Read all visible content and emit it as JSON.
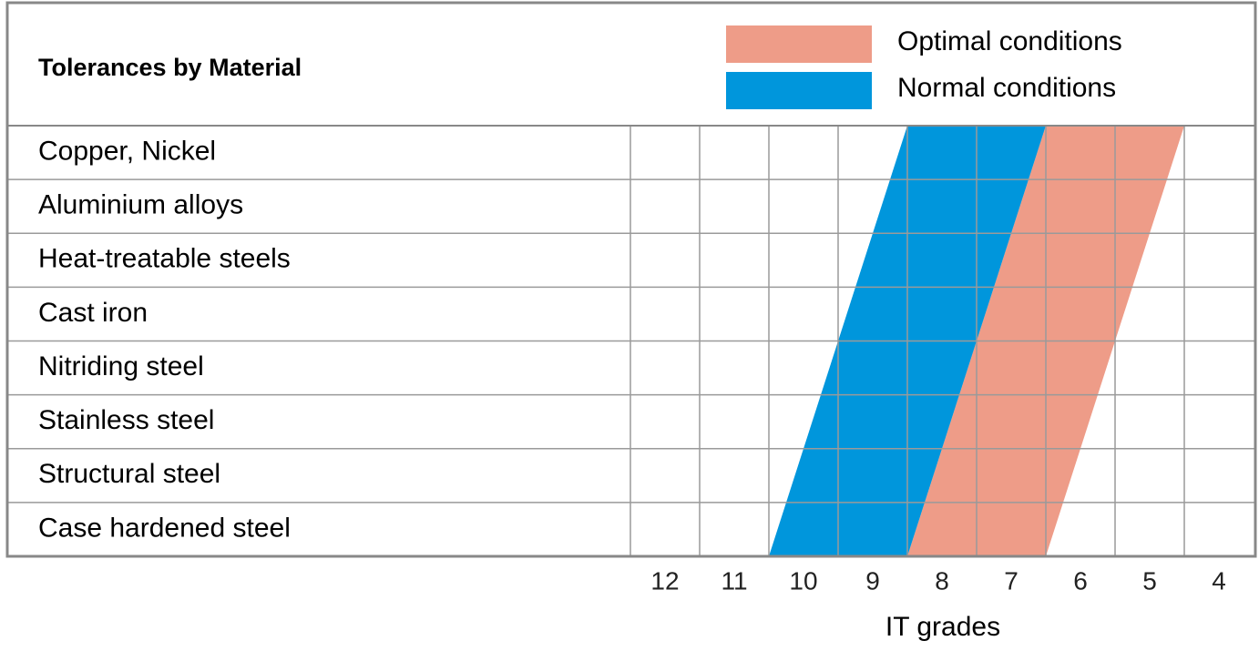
{
  "chart_data": {
    "type": "band",
    "title": "Tolerances by Material",
    "categories": [
      "Copper, Nickel",
      "Aluminium alloys",
      "Heat-treatable steels",
      "Cast iron",
      "Nitriding steel",
      "Stainless steel",
      "Structural steel",
      "Case hardened steel"
    ],
    "series": [
      {
        "name": "Optimal conditions",
        "color": "#ee9c88",
        "top": [
          6.5,
          4.5
        ],
        "bottom": [
          8.5,
          6.5
        ]
      },
      {
        "name": "Normal conditions",
        "color": "#0096dc",
        "top": [
          8.5,
          6.5
        ],
        "bottom": [
          10.5,
          8.5
        ]
      }
    ],
    "xlabel": "IT grades",
    "xlim": [
      12.5,
      3.5
    ],
    "xticks": [
      12,
      11,
      10,
      9,
      8,
      7,
      6,
      5,
      4
    ],
    "grid": true
  }
}
